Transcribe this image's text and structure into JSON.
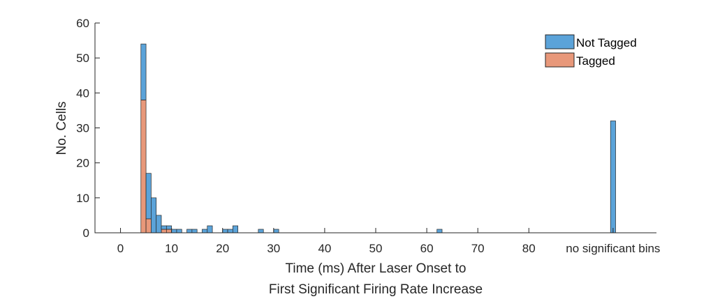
{
  "chart_data": {
    "type": "bar",
    "stacked": true,
    "xlabel_lines": [
      "Time (ms) After Laser Onset to",
      "First Significant Firing Rate Increase"
    ],
    "ylabel": "No. Cells",
    "xlim": [
      -5,
      105
    ],
    "ylim": [
      0,
      60
    ],
    "x_ticks": [
      0,
      10,
      20,
      30,
      40,
      50,
      60,
      70,
      80
    ],
    "x_tick_labels": [
      "0",
      "10",
      "20",
      "30",
      "40",
      "50",
      "60",
      "70",
      "80"
    ],
    "y_ticks": [
      0,
      10,
      20,
      30,
      40,
      50,
      60
    ],
    "y_tick_labels": [
      "0",
      "10",
      "20",
      "30",
      "40",
      "50",
      "60"
    ],
    "special_category": {
      "x": 96.5,
      "label": "no significant bins"
    },
    "bin_width": 1,
    "grid": false,
    "legend_position": "top-right",
    "series": [
      {
        "name": "Not Tagged",
        "color": "#5ba3d9",
        "points": [
          {
            "x": 4.5,
            "y": 16
          },
          {
            "x": 5.5,
            "y": 13
          },
          {
            "x": 6.5,
            "y": 10
          },
          {
            "x": 7.5,
            "y": 5
          },
          {
            "x": 8.5,
            "y": 1
          },
          {
            "x": 9.5,
            "y": 1
          },
          {
            "x": 10.5,
            "y": 1
          },
          {
            "x": 11.5,
            "y": 1
          },
          {
            "x": 13.5,
            "y": 1
          },
          {
            "x": 14.5,
            "y": 1
          },
          {
            "x": 16.5,
            "y": 1
          },
          {
            "x": 17.5,
            "y": 2
          },
          {
            "x": 20.5,
            "y": 1
          },
          {
            "x": 21.5,
            "y": 1
          },
          {
            "x": 22.5,
            "y": 2
          },
          {
            "x": 27.5,
            "y": 1
          },
          {
            "x": 30.5,
            "y": 1
          },
          {
            "x": 62.5,
            "y": 1
          },
          {
            "x": 96.5,
            "y": 32
          }
        ]
      },
      {
        "name": "Tagged",
        "color": "#e8987a",
        "points": [
          {
            "x": 4.5,
            "y": 38
          },
          {
            "x": 5.5,
            "y": 4
          },
          {
            "x": 8.5,
            "y": 1
          },
          {
            "x": 9.5,
            "y": 1
          }
        ]
      }
    ]
  }
}
